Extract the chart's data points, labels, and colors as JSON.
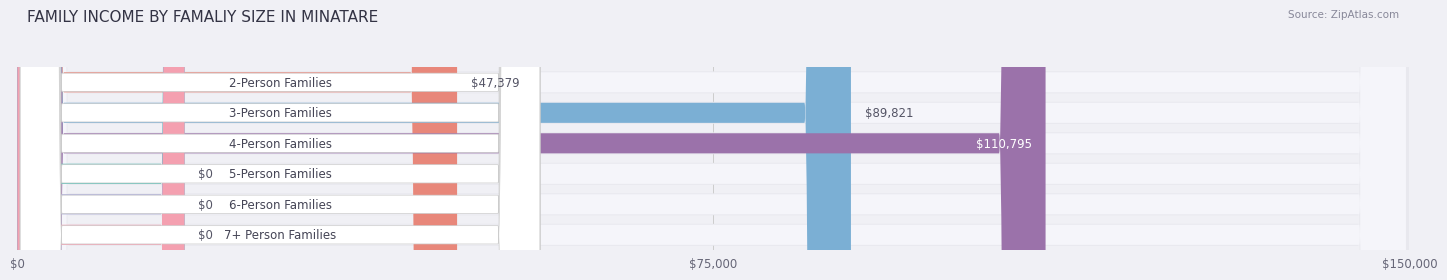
{
  "title": "FAMILY INCOME BY FAMALIY SIZE IN MINATARE",
  "source": "Source: ZipAtlas.com",
  "categories": [
    "2-Person Families",
    "3-Person Families",
    "4-Person Families",
    "5-Person Families",
    "6-Person Families",
    "7+ Person Families"
  ],
  "values": [
    47379,
    89821,
    110795,
    0,
    0,
    0
  ],
  "bar_colors": [
    "#E8877A",
    "#7BAFD4",
    "#9B72AA",
    "#5BBFB5",
    "#A9A9D4",
    "#F4A0B0"
  ],
  "xlim": [
    0,
    150000
  ],
  "xticks": [
    0,
    75000,
    150000
  ],
  "xtick_labels": [
    "$0",
    "$75,000",
    "$150,000"
  ],
  "bar_height": 0.72,
  "row_bg_color": "#ededee",
  "row_fill_color": "#f8f8fb",
  "title_fontsize": 11,
  "label_fontsize": 8.5,
  "value_fontsize": 8.5,
  "tick_fontsize": 8.5,
  "zero_bar_width": 18000
}
